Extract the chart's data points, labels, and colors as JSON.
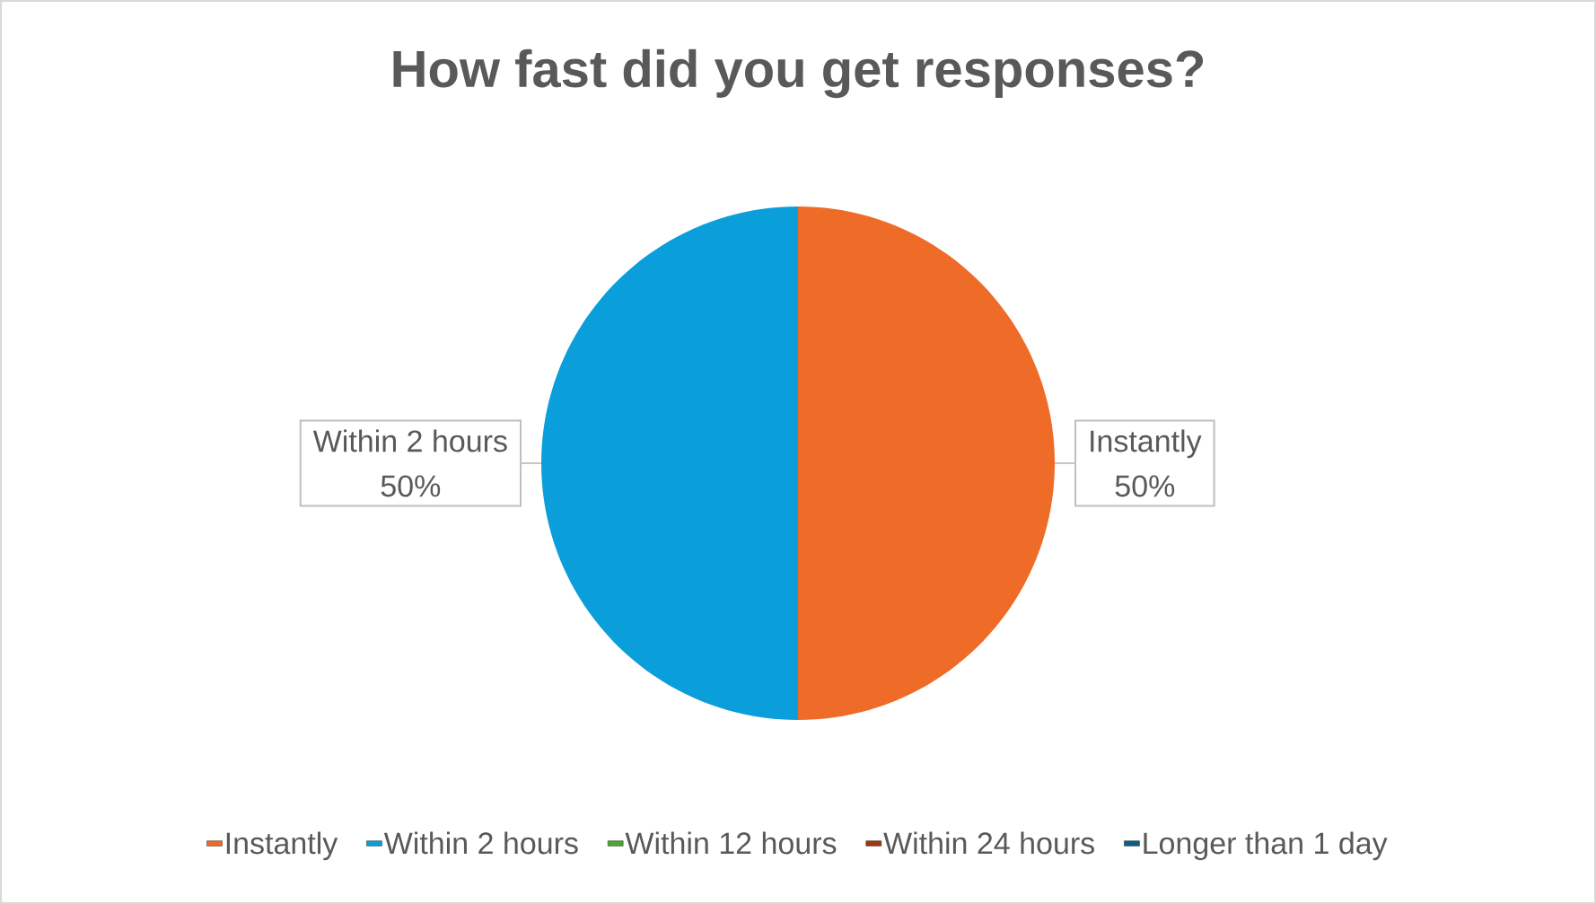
{
  "chart_data": {
    "type": "pie",
    "title": "How fast did you get responses?",
    "categories": [
      "Instantly",
      "Within 2 hours",
      "Within 12 hours",
      "Within 24 hours",
      "Longer than 1 day"
    ],
    "values": [
      50,
      50,
      0,
      0,
      0
    ],
    "colors": [
      "#ee6b28",
      "#0a9fdb",
      "#4ea72e",
      "#a0380e",
      "#0e5f84"
    ],
    "value_labels": [
      "50%",
      "50%",
      null,
      null,
      null
    ],
    "legend": "bottom"
  }
}
